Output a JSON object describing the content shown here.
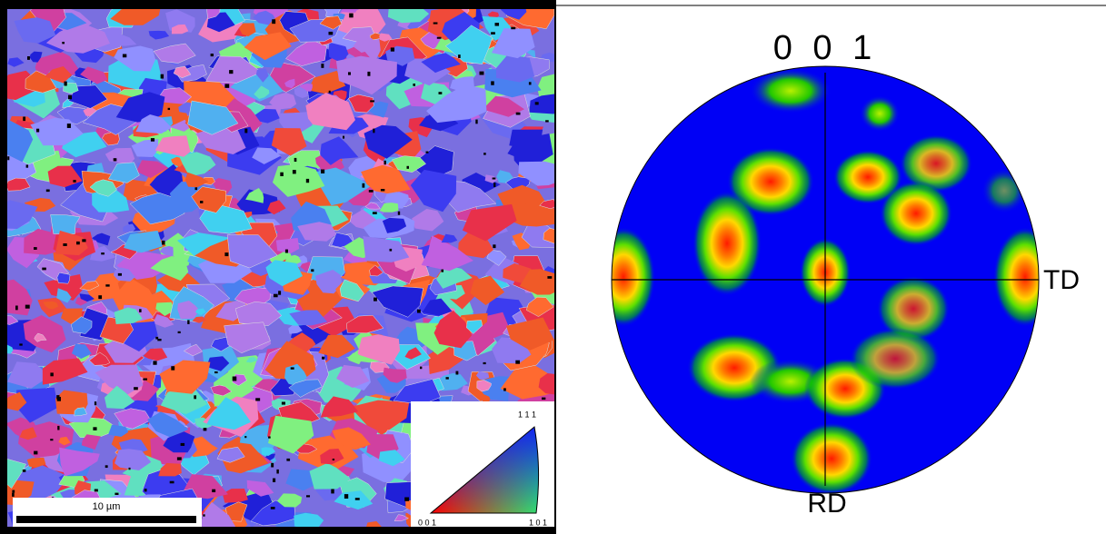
{
  "map": {
    "scale_bar": "10 µm",
    "legend": {
      "top": "1 1 1",
      "left": "0 0 1",
      "right": "1 0 1"
    }
  },
  "pole_figure": {
    "title": "0 0 1",
    "right_label": "TD",
    "bottom_label": "RD"
  }
}
